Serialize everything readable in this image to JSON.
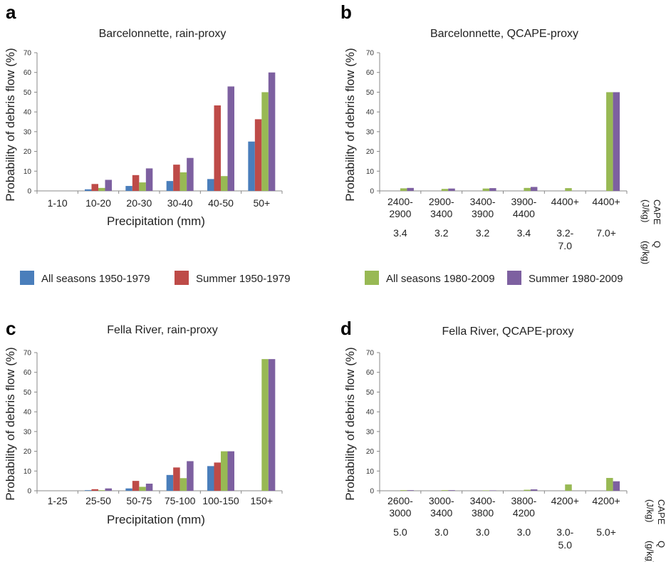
{
  "legend": {
    "items": [
      {
        "label": "All seasons 1950-1979",
        "color": "#4a7ebb"
      },
      {
        "label": "Summer 1950-1979",
        "color": "#be4b48"
      },
      {
        "label": "All seasons 1980-2009",
        "color": "#98b954"
      },
      {
        "label": "Summer 1980-2009",
        "color": "#7d60a0"
      }
    ]
  },
  "chart_data": [
    {
      "type": "bar",
      "letter": "a",
      "title": "Barcelonnette, rain-proxy",
      "ylabel": "Probability of debris flow (%)",
      "xlabel": "Precipitation (mm)",
      "ylim": [
        0,
        70
      ],
      "yticks": [
        0,
        10,
        20,
        30,
        40,
        50,
        60,
        70
      ],
      "categories": [
        [
          "1-10"
        ],
        [
          "10-20"
        ],
        [
          "20-30"
        ],
        [
          "30-40"
        ],
        [
          "40-50"
        ],
        [
          "50+"
        ]
      ],
      "side_labels": [],
      "series": [
        {
          "name": "All seasons 1950-1979",
          "values": [
            0,
            0.8,
            2.5,
            5,
            6,
            25
          ]
        },
        {
          "name": "Summer 1950-1979",
          "values": [
            0,
            3.5,
            8,
            13.3,
            43.3,
            36.3
          ]
        },
        {
          "name": "All seasons 1980-2009",
          "values": [
            0,
            1.5,
            4.3,
            9.4,
            7.5,
            50
          ]
        },
        {
          "name": "Summer 1980-2009",
          "values": [
            0,
            5.6,
            11.4,
            16.7,
            52.9,
            60
          ]
        }
      ]
    },
    {
      "type": "bar",
      "letter": "b",
      "title": "Barcelonnette, QCAPE-proxy",
      "ylabel": "Probability of debris flow (%)",
      "xlabel": "",
      "ylim": [
        0,
        70
      ],
      "yticks": [
        0,
        10,
        20,
        30,
        40,
        50,
        60,
        70
      ],
      "categories": [
        [
          "2400-",
          "2900"
        ],
        [
          "2900-",
          "3400"
        ],
        [
          "3400-",
          "3900"
        ],
        [
          "3900-",
          "4400"
        ],
        [
          "4400+"
        ],
        [
          "4400+"
        ]
      ],
      "q_labels": [
        [
          "3.4"
        ],
        [
          "3.2"
        ],
        [
          "3.2"
        ],
        [
          "3.4"
        ],
        [
          "3.2-",
          "7.0"
        ],
        [
          "7.0+"
        ]
      ],
      "side_labels": [
        "CAPE",
        "(J/kg)",
        "Q",
        "(g/kg)"
      ],
      "series": [
        {
          "name": "All seasons 1950-1979",
          "values": [
            0,
            0,
            0,
            0,
            0,
            0
          ]
        },
        {
          "name": "Summer 1950-1979",
          "values": [
            0,
            0,
            0,
            0,
            0,
            0
          ]
        },
        {
          "name": "All seasons 1980-2009",
          "values": [
            1.3,
            1.0,
            1.2,
            1.5,
            1.4,
            50
          ]
        },
        {
          "name": "Summer 1980-2009",
          "values": [
            1.5,
            1.2,
            1.4,
            2.0,
            0,
            50
          ]
        }
      ]
    },
    {
      "type": "bar",
      "letter": "c",
      "title": "Fella River, rain-proxy",
      "ylabel": "Probability of debris flow (%)",
      "xlabel": "Precipitation (mm)",
      "ylim": [
        0,
        70
      ],
      "yticks": [
        0,
        10,
        20,
        30,
        40,
        50,
        60,
        70
      ],
      "categories": [
        [
          "1-25"
        ],
        [
          "25-50"
        ],
        [
          "50-75"
        ],
        [
          "75-100"
        ],
        [
          "100-150"
        ],
        [
          "150+"
        ]
      ],
      "side_labels": [],
      "series": [
        {
          "name": "All seasons 1950-1979",
          "values": [
            0,
            0.3,
            1.2,
            8,
            12.5,
            0
          ]
        },
        {
          "name": "Summer 1950-1979",
          "values": [
            0,
            0.8,
            5,
            11.8,
            14.3,
            0
          ]
        },
        {
          "name": "All seasons 1980-2009",
          "values": [
            0,
            0.3,
            2,
            6.4,
            20,
            66.7
          ]
        },
        {
          "name": "Summer 1980-2009",
          "values": [
            0,
            1.2,
            3.6,
            15,
            20,
            66.7
          ]
        }
      ]
    },
    {
      "type": "bar",
      "letter": "d",
      "title": "Fella River, QCAPE-proxy",
      "ylabel": "Probability of debris flow (%)",
      "xlabel": "",
      "ylim": [
        0,
        70
      ],
      "yticks": [
        0,
        10,
        20,
        30,
        40,
        50,
        60,
        70
      ],
      "categories": [
        [
          "2600-",
          "3000"
        ],
        [
          "3000-",
          "3400"
        ],
        [
          "3400-",
          "3800"
        ],
        [
          "3800-",
          "4200"
        ],
        [
          "4200+"
        ],
        [
          "4200+"
        ]
      ],
      "q_labels": [
        [
          "5.0"
        ],
        [
          "3.0"
        ],
        [
          "3.0"
        ],
        [
          "3.0"
        ],
        [
          "3.0-",
          "5.0"
        ],
        [
          "5.0+"
        ]
      ],
      "side_labels": [
        "CAPE",
        "(J/kg)",
        "Q",
        "(g/kg)"
      ],
      "series": [
        {
          "name": "All seasons 1950-1979",
          "values": [
            0,
            0,
            0,
            0,
            0,
            0
          ]
        },
        {
          "name": "Summer 1950-1979",
          "values": [
            0,
            0,
            0,
            0,
            0,
            0
          ]
        },
        {
          "name": "All seasons 1980-2009",
          "values": [
            0.3,
            0.3,
            0.2,
            0.5,
            3.2,
            6.5
          ]
        },
        {
          "name": "Summer 1980-2009",
          "values": [
            0.3,
            0.3,
            0.2,
            0.7,
            0,
            4.8
          ]
        }
      ]
    }
  ]
}
